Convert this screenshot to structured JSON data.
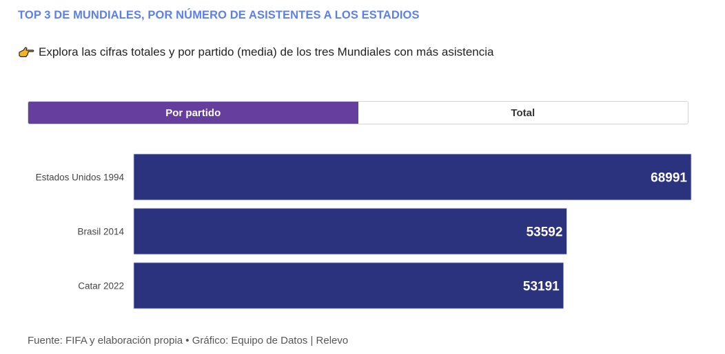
{
  "header": {
    "title": "TOP 3 DE MUNDIALES, POR NÚMERO DE ASISTENTES A LOS ESTADIOS",
    "subtitle": "Explora las cifras totales y por partido (media) de los tres Mundiales con más asistencia",
    "subtitle_icon": "pointing-hand-icon"
  },
  "toggle": {
    "options": [
      {
        "label": "Por partido",
        "active": true
      },
      {
        "label": "Total",
        "active": false
      }
    ],
    "active_color": "#663f9e"
  },
  "chart_data": {
    "type": "bar",
    "orientation": "horizontal",
    "categories": [
      "Estados Unidos 1994",
      "Brasil 2014",
      "Catar 2022"
    ],
    "values": [
      68991,
      53592,
      53191
    ],
    "labels": [
      "68991",
      "53592",
      "53191"
    ],
    "bar_color": "#2b327e",
    "xlim": [
      0,
      68991
    ],
    "grid": false
  },
  "footer": {
    "source": "Fuente: FIFA y elaboración propia • Gráfico: Equipo de Datos | Relevo"
  }
}
